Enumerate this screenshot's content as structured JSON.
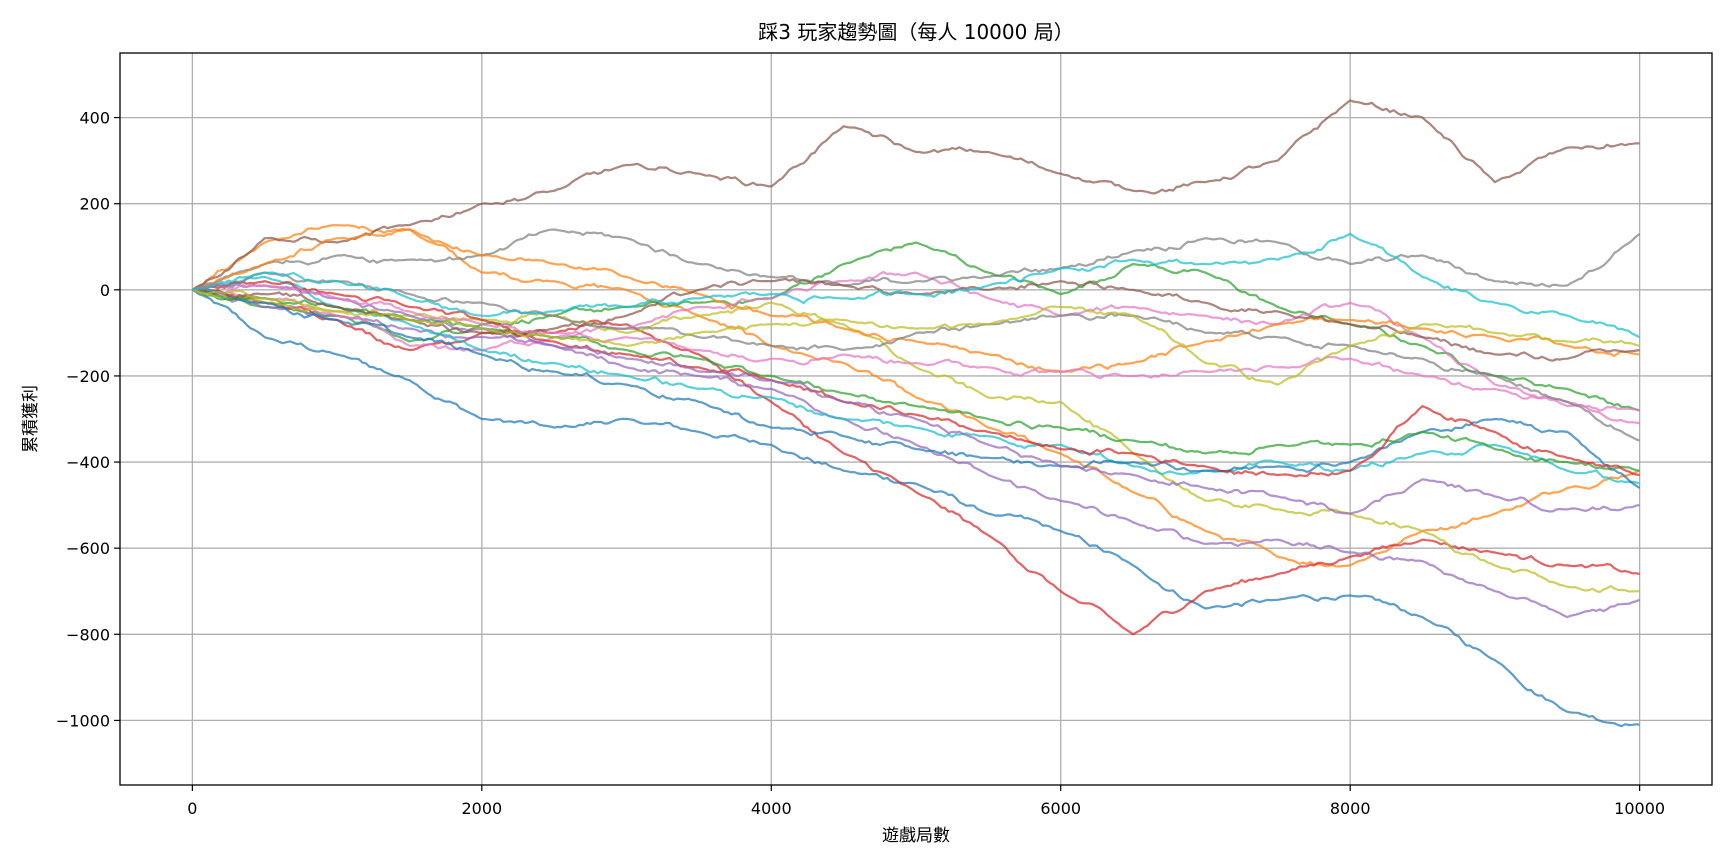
{
  "chart_data": {
    "type": "line",
    "title": "踩3 玩家趨勢圖（每人 10000 局）",
    "xlabel": "遊戲局數",
    "ylabel": "累積獲利",
    "xlim": [
      -500,
      10500
    ],
    "ylim": [
      -1150,
      550
    ],
    "xticks": [
      0,
      2000,
      4000,
      6000,
      8000,
      10000
    ],
    "yticks": [
      -1000,
      -800,
      -600,
      -400,
      -200,
      0,
      200,
      400
    ],
    "xtick_labels": [
      "0",
      "2000",
      "4000",
      "6000",
      "8000",
      "10000"
    ],
    "ytick_labels": [
      "−1000",
      "−800",
      "−600",
      "−400",
      "−200",
      "0",
      "200",
      "400"
    ],
    "grid": true,
    "legend": "none",
    "x": [
      0,
      500,
      1000,
      1500,
      2000,
      2500,
      3000,
      3500,
      4000,
      4500,
      5000,
      5500,
      6000,
      6500,
      7000,
      7500,
      8000,
      8500,
      9000,
      9500,
      10000
    ],
    "series": [
      {
        "color": "#1f77b4",
        "values": [
          0,
          -110,
          -150,
          -210,
          -300,
          -320,
          -300,
          -330,
          -360,
          -420,
          -450,
          -520,
          -560,
          -640,
          -740,
          -720,
          -710,
          -760,
          -860,
          -980,
          -1010
        ]
      },
      {
        "color": "#ff7f0e",
        "values": [
          0,
          110,
          150,
          140,
          40,
          20,
          0,
          -60,
          -130,
          -170,
          -250,
          -320,
          -380,
          -470,
          -560,
          -620,
          -640,
          -560,
          -520,
          -460,
          -420
        ]
      },
      {
        "color": "#2ca02c",
        "values": [
          0,
          -40,
          -60,
          -120,
          -80,
          -60,
          -40,
          -30,
          -20,
          60,
          110,
          40,
          -10,
          60,
          40,
          -40,
          -80,
          -130,
          -200,
          -230,
          -280
        ]
      },
      {
        "color": "#d62728",
        "values": [
          0,
          -30,
          -70,
          -140,
          -100,
          -100,
          -80,
          -150,
          -260,
          -380,
          -470,
          -570,
          -700,
          -800,
          -700,
          -660,
          -620,
          -580,
          -610,
          -640,
          -660
        ]
      },
      {
        "color": "#9467bd",
        "values": [
          0,
          -40,
          -60,
          -90,
          -110,
          -130,
          -180,
          -200,
          -230,
          -300,
          -360,
          -430,
          -490,
          -540,
          -590,
          -580,
          -610,
          -630,
          -700,
          -760,
          -720
        ]
      },
      {
        "color": "#8c564b",
        "values": [
          0,
          120,
          110,
          150,
          200,
          230,
          290,
          270,
          240,
          380,
          320,
          320,
          270,
          230,
          250,
          300,
          440,
          400,
          250,
          330,
          340
        ]
      },
      {
        "color": "#e377c2",
        "values": [
          0,
          -20,
          -60,
          -130,
          -140,
          -110,
          -90,
          -40,
          -20,
          20,
          40,
          -20,
          -60,
          -40,
          -60,
          -80,
          -30,
          -110,
          -220,
          -270,
          -280
        ]
      },
      {
        "color": "#7f7f7f",
        "values": [
          0,
          60,
          80,
          70,
          80,
          140,
          120,
          60,
          30,
          10,
          20,
          30,
          50,
          90,
          120,
          110,
          60,
          80,
          20,
          10,
          130
        ]
      },
      {
        "color": "#bcbd22",
        "values": [
          0,
          -30,
          -50,
          -60,
          -70,
          -60,
          -100,
          -60,
          -30,
          -80,
          -180,
          -250,
          -260,
          -380,
          -490,
          -510,
          -520,
          -560,
          -640,
          -690,
          -700
        ]
      },
      {
        "color": "#17becf",
        "values": [
          0,
          30,
          -40,
          -80,
          -140,
          -170,
          -200,
          -230,
          -250,
          -300,
          -320,
          -340,
          -360,
          -410,
          -420,
          -400,
          -420,
          -380,
          -360,
          -420,
          -450
        ]
      },
      {
        "color": "#1f77b4",
        "values": [
          0,
          -30,
          -70,
          -110,
          -150,
          -190,
          -220,
          -260,
          -320,
          -340,
          -370,
          -390,
          -410,
          -400,
          -420,
          -410,
          -400,
          -330,
          -300,
          -330,
          -460
        ]
      },
      {
        "color": "#ff7f0e",
        "values": [
          0,
          60,
          120,
          140,
          80,
          60,
          30,
          -10,
          -60,
          -90,
          -120,
          -150,
          -190,
          -170,
          -120,
          -80,
          -70,
          -90,
          -110,
          -130,
          -150
        ]
      },
      {
        "color": "#2ca02c",
        "values": [
          0,
          -20,
          -40,
          -70,
          -90,
          -110,
          -140,
          -160,
          -200,
          -240,
          -270,
          -300,
          -320,
          -350,
          -380,
          -360,
          -360,
          -330,
          -370,
          -400,
          -420
        ]
      },
      {
        "color": "#d62728",
        "values": [
          0,
          20,
          -10,
          -40,
          -70,
          -120,
          -150,
          -180,
          -210,
          -260,
          -290,
          -330,
          -370,
          -380,
          -410,
          -430,
          -420,
          -270,
          -330,
          -390,
          -430
        ]
      },
      {
        "color": "#9467bd",
        "values": [
          0,
          10,
          -20,
          -60,
          -90,
          -130,
          -160,
          -190,
          -210,
          -260,
          -300,
          -360,
          -410,
          -430,
          -460,
          -480,
          -520,
          -440,
          -480,
          -510,
          -500
        ]
      },
      {
        "color": "#8c564b",
        "values": [
          0,
          -10,
          -40,
          -70,
          -100,
          -90,
          -60,
          0,
          20,
          10,
          -10,
          0,
          20,
          0,
          -30,
          -50,
          -80,
          -110,
          -150,
          -160,
          -140
        ]
      },
      {
        "color": "#e377c2",
        "values": [
          0,
          10,
          -20,
          -50,
          -80,
          -100,
          -110,
          -140,
          -160,
          -150,
          -170,
          -180,
          -190,
          -200,
          -190,
          -180,
          -160,
          -200,
          -230,
          -260,
          -310
        ]
      },
      {
        "color": "#7f7f7f",
        "values": [
          0,
          40,
          20,
          -10,
          -30,
          -60,
          -90,
          -110,
          -130,
          -140,
          -100,
          -80,
          -60,
          -60,
          -100,
          -110,
          -130,
          -160,
          -200,
          -260,
          -350
        ]
      },
      {
        "color": "#bcbd22",
        "values": [
          0,
          -20,
          -50,
          -70,
          -90,
          -110,
          -130,
          -100,
          -80,
          -70,
          -90,
          -80,
          -40,
          -60,
          -170,
          -220,
          -130,
          -80,
          -100,
          -120,
          -130
        ]
      },
      {
        "color": "#17becf",
        "values": [
          0,
          40,
          20,
          -20,
          -60,
          -50,
          -40,
          -20,
          -10,
          -20,
          -10,
          10,
          50,
          70,
          60,
          70,
          130,
          30,
          -30,
          -60,
          -110
        ]
      }
    ]
  }
}
